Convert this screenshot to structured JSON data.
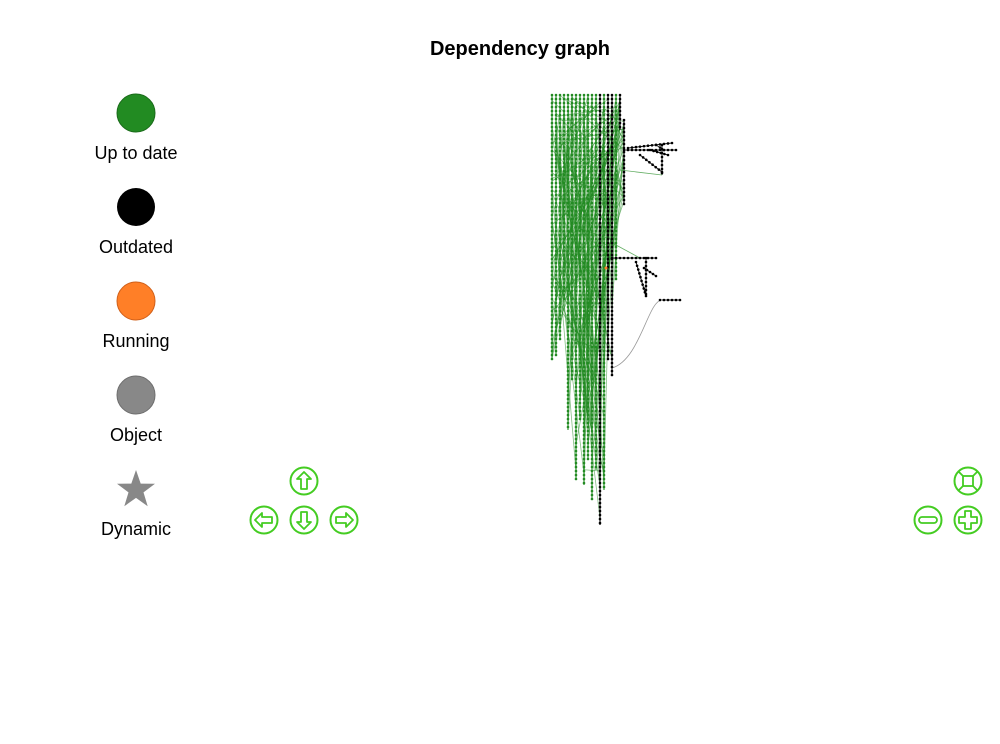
{
  "title": "Dependency graph",
  "legend": [
    {
      "label": "Up to date",
      "shape": "circle",
      "color": "#228b22"
    },
    {
      "label": "Outdated",
      "shape": "circle",
      "color": "#000000"
    },
    {
      "label": "Running",
      "shape": "circle",
      "color": "#ff7f27"
    },
    {
      "label": "Object",
      "shape": "circle",
      "color": "#888888"
    },
    {
      "label": "Dynamic",
      "shape": "star",
      "color": "#888888"
    }
  ],
  "colors": {
    "up_to_date": "#228b22",
    "outdated": "#000000",
    "running": "#ff7f27",
    "object": "#888888",
    "nav": "#44cc22"
  },
  "nav_icons": [
    "up-arrow-icon",
    "down-arrow-icon",
    "left-arrow-icon",
    "right-arrow-icon",
    "zoom-extent-icon",
    "zoom-out-icon",
    "zoom-in-icon"
  ]
}
